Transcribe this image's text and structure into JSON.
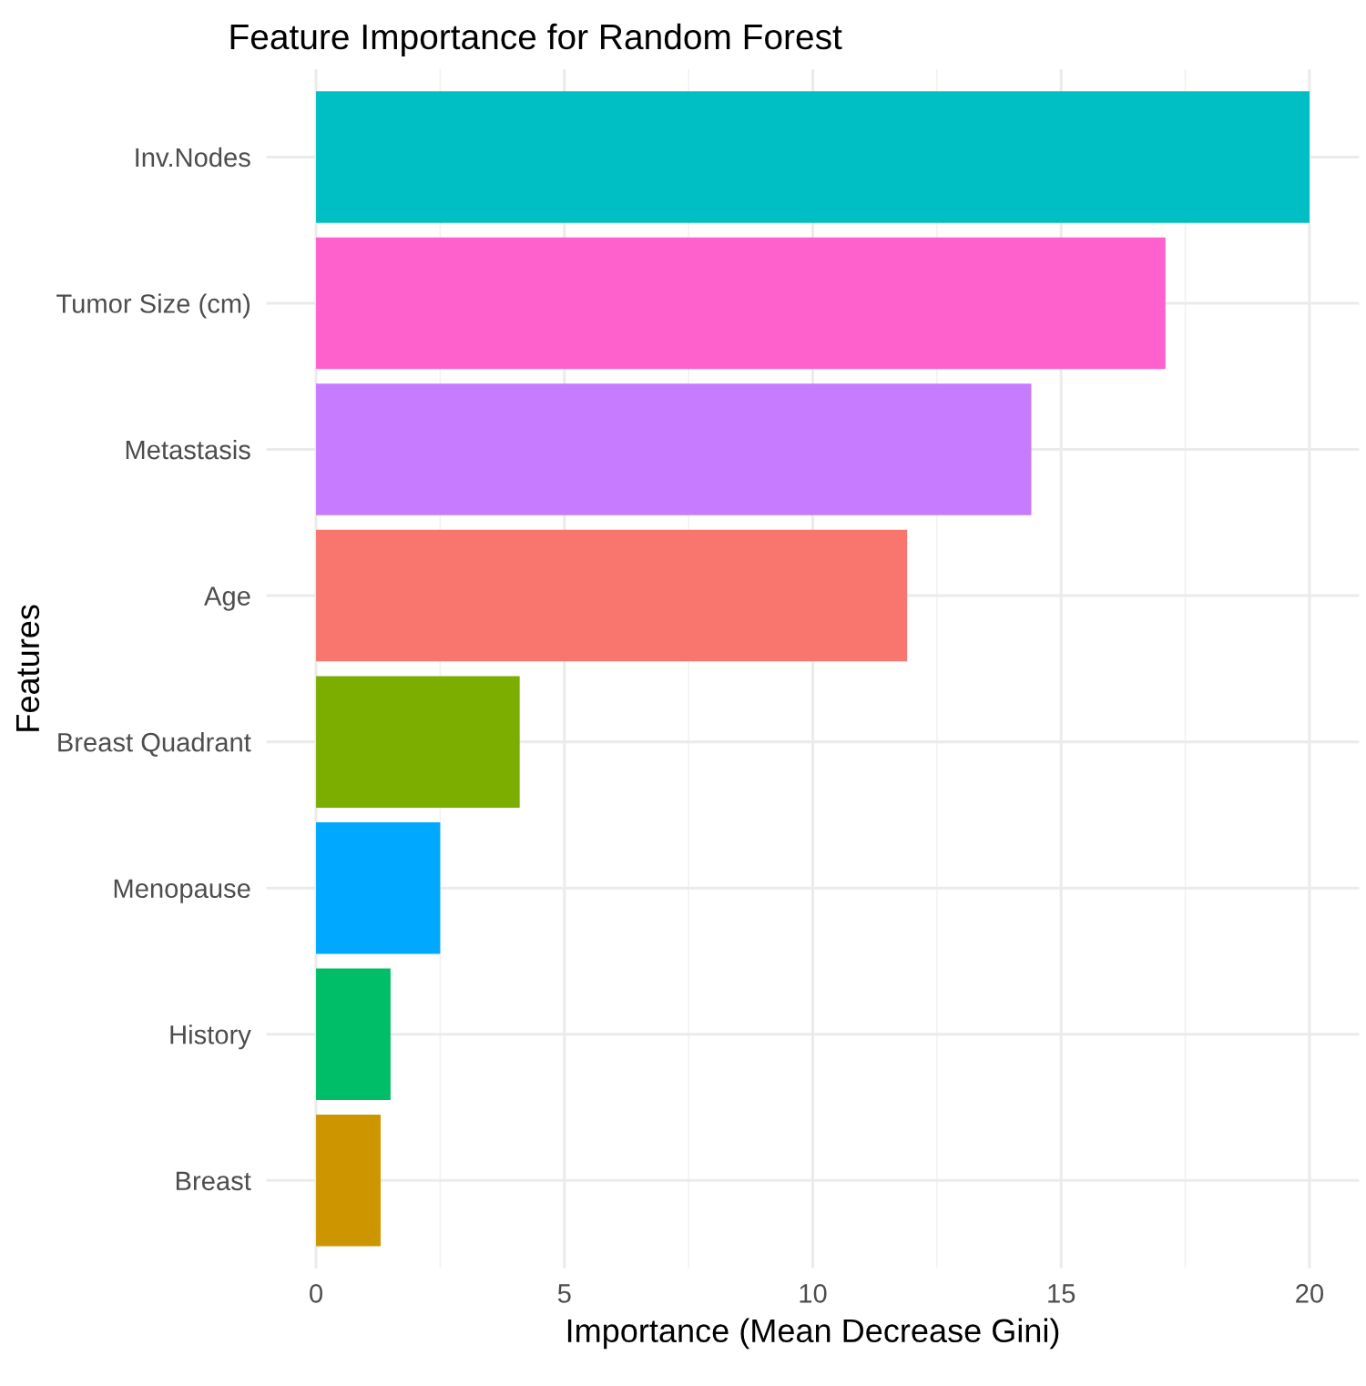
{
  "chart_data": {
    "type": "bar",
    "orientation": "horizontal",
    "title": "Feature Importance for Random Forest",
    "xlabel": "Importance (Mean Decrease Gini)",
    "ylabel": "Features",
    "categories": [
      "Inv.Nodes",
      "Tumor Size (cm)",
      "Metastasis",
      "Age",
      "Breast Quadrant",
      "Menopause",
      "History",
      "Breast"
    ],
    "values": [
      20.0,
      17.1,
      14.4,
      11.9,
      4.1,
      2.5,
      1.5,
      1.3
    ],
    "colors": [
      "#00bfc4",
      "#ff61cc",
      "#c77cff",
      "#f8766d",
      "#7cae00",
      "#00a9ff",
      "#00be67",
      "#cd9600"
    ],
    "xlim": [
      -1,
      21
    ],
    "xticks": [
      0,
      5,
      10,
      15,
      20
    ],
    "grid": true
  }
}
